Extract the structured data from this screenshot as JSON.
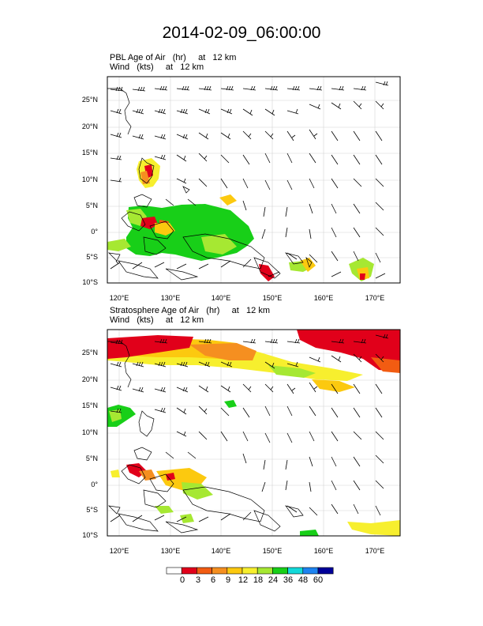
{
  "figure": {
    "title": "2014-02-09_06:00:00",
    "panel_top": {
      "line1": "PBL Age of Air   (hr)     at   12 km",
      "line2": "Wind   (kts)     at   12 km"
    },
    "panel_bottom": {
      "line1": "Stratosphere Age of Air   (hr)     at   12 km",
      "line2": "Wind   (kts)     at   12 km"
    },
    "lat_labels": [
      "25°N",
      "20°N",
      "15°N",
      "10°N",
      "5°N",
      "0°",
      "5°S",
      "10°S"
    ],
    "lon_labels": [
      "120°E",
      "130°E",
      "140°E",
      "150°E",
      "160°E",
      "170°E"
    ]
  },
  "colorbar": {
    "labels": [
      "0",
      "3",
      "6",
      "9",
      "12",
      "18",
      "24",
      "36",
      "48",
      "60"
    ],
    "colors": [
      "#ffffff",
      "#e1001a",
      "#f25c12",
      "#f58f20",
      "#fcc90f",
      "#f7ef2e",
      "#a6e832",
      "#18cf18",
      "#12d9d9",
      "#1d83f0",
      "#000099"
    ]
  },
  "map": {
    "lon_range": [
      116.5,
      173.5
    ],
    "lat_range": [
      -10.3,
      28.8
    ],
    "coast_color": "#000000",
    "grid_color": "#cfcfcf",
    "wind_color": "#000000"
  }
}
